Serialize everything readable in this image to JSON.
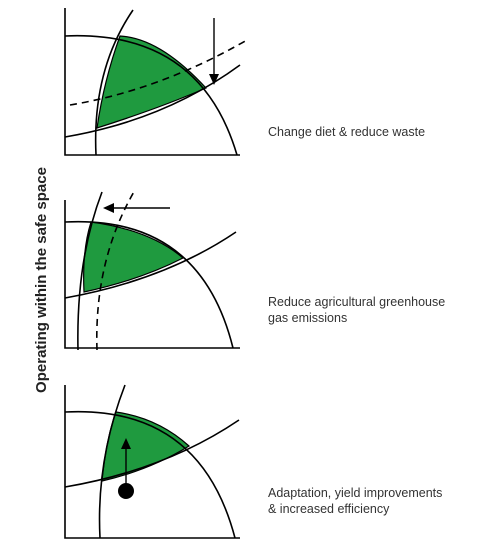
{
  "side_title": "Operating within the safe space",
  "colors": {
    "safe_space": "#1f9a3f",
    "line": "#000000"
  },
  "panels": [
    {
      "label_lines": [
        "Change diet & reduce waste"
      ]
    },
    {
      "label_lines": [
        "Reduce agricultural greenhouse",
        "gas emissions"
      ]
    },
    {
      "label_lines": [
        "Adaptation, yield improvements",
        "& increased efficiency"
      ]
    }
  ]
}
